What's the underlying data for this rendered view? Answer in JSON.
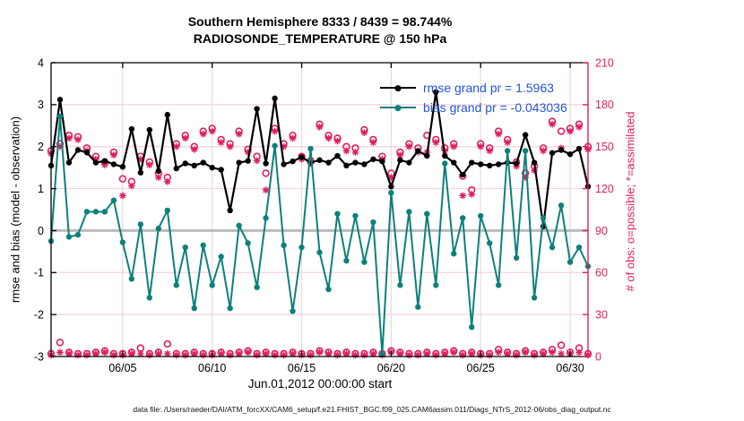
{
  "chart_data": {
    "type": "line",
    "title": "Southern Hemisphere 8333 / 8439 = 98.744%",
    "subtitle": "RADIOSONDE_TEMPERATURE @ 150 hPa",
    "xlabel": "Jun.01,2012 00:00:00 start",
    "ylabel_left": "rmse and bias (model - observation)",
    "ylabel_right": "# of obs: o=possible; *=assimilated",
    "footer": "data file: /Users/raeder/DAI/ATM_forcXX/CAM6_setup/f.e21.FHIST_BGC.f09_025.CAM6assim.011/Diags_NTrS_2012-06/obs_diag_output.nc",
    "legend": [
      {
        "series": "rmse",
        "label": "rmse grand pr = 1.5963",
        "color": "#000000"
      },
      {
        "series": "bias",
        "label": "bias grand pr = -0.043036",
        "color": "#0E807B"
      }
    ],
    "colors": {
      "rmse": "#000000",
      "bias": "#0E807B",
      "obs": "#DE1E60",
      "legend_text": "#2356D6",
      "grid_h": "#F6D2DE",
      "grid_v": "#E6DCDC",
      "zero_line": "#BBBBBB",
      "axis_left": "#000000",
      "axis_right": "#DE1E60"
    },
    "x_axis": {
      "range_days": [
        1,
        31
      ],
      "tick_days": [
        5,
        10,
        15,
        20,
        25,
        30
      ],
      "tick_labels": [
        "06/05",
        "06/10",
        "06/15",
        "06/20",
        "06/25",
        "06/30"
      ]
    },
    "y_left": {
      "range": [
        -3,
        4
      ],
      "ticks": [
        -3,
        -2,
        -1,
        0,
        1,
        2,
        3,
        4
      ]
    },
    "y_right": {
      "range": [
        0,
        210
      ],
      "ticks": [
        0,
        30,
        60,
        90,
        120,
        150,
        180,
        210
      ]
    },
    "x_days": [
      1,
      1.5,
      2,
      2.5,
      3,
      3.5,
      4,
      4.5,
      5,
      5.5,
      6,
      6.5,
      7,
      7.5,
      8,
      8.5,
      9,
      9.5,
      10,
      10.5,
      11,
      11.5,
      12,
      12.5,
      13,
      13.5,
      14,
      14.5,
      15,
      15.5,
      16,
      16.5,
      17,
      17.5,
      18,
      18.5,
      19,
      19.5,
      20,
      20.5,
      21,
      21.5,
      22,
      22.5,
      23,
      23.5,
      24,
      24.5,
      25,
      25.5,
      26,
      26.5,
      27,
      27.5,
      28,
      28.5,
      29,
      29.5,
      30,
      30.5,
      31
    ],
    "series": {
      "rmse": [
        1.55,
        3.12,
        1.62,
        1.92,
        1.86,
        1.62,
        1.66,
        1.58,
        1.52,
        2.42,
        1.38,
        2.4,
        1.42,
        2.76,
        1.48,
        1.6,
        1.55,
        1.62,
        1.5,
        1.45,
        0.48,
        1.62,
        1.66,
        2.9,
        1.6,
        3.15,
        1.58,
        1.65,
        1.75,
        1.62,
        1.68,
        1.62,
        1.78,
        1.55,
        1.62,
        1.58,
        1.7,
        1.65,
        1.05,
        1.68,
        1.62,
        1.9,
        1.78,
        3.3,
        1.78,
        1.62,
        1.33,
        1.62,
        1.58,
        1.55,
        1.58,
        1.62,
        1.6,
        2.28,
        1.62,
        0.1,
        1.85,
        1.92,
        1.82,
        1.95,
        1.05
      ],
      "bias": [
        -0.25,
        2.72,
        -0.15,
        -0.1,
        0.45,
        0.45,
        0.45,
        0.72,
        -0.28,
        -1.15,
        0.15,
        -1.6,
        0.05,
        0.48,
        -1.3,
        -0.4,
        -1.85,
        -0.35,
        -1.3,
        -0.62,
        -1.85,
        0.12,
        -0.3,
        -1.35,
        0.3,
        2.02,
        -0.35,
        -1.92,
        -0.4,
        1.95,
        -0.52,
        -1.4,
        0.4,
        -0.72,
        0.35,
        -0.75,
        0.2,
        -2.95,
        0.9,
        -1.3,
        0.45,
        -1.82,
        0.4,
        -1.3,
        1.6,
        -0.55,
        0.3,
        -2.3,
        0.35,
        -0.3,
        -1.3,
        1.9,
        -0.65,
        1.9,
        -1.6,
        0.3,
        -0.4,
        0.6,
        -0.75,
        -0.4,
        -0.85
      ],
      "n_possible": [
        147,
        152,
        158,
        157,
        149,
        143,
        139,
        146,
        127,
        125,
        143,
        139,
        131,
        128,
        152,
        158,
        150,
        161,
        163,
        155,
        152,
        161,
        148,
        143,
        131,
        163,
        152,
        158,
        143,
        140,
        166,
        158,
        156,
        150,
        149,
        162,
        155,
        143,
        131,
        146,
        152,
        149,
        158,
        155,
        149,
        152,
        129,
        119,
        152,
        149,
        161,
        155,
        139,
        131,
        136,
        149,
        168,
        161,
        163,
        166,
        150
      ],
      "n_assimilated": [
        145,
        150,
        156,
        155,
        147,
        141,
        137,
        144,
        115,
        122,
        141,
        137,
        128,
        125,
        150,
        156,
        148,
        159,
        161,
        153,
        150,
        159,
        146,
        140,
        119,
        161,
        150,
        156,
        141,
        138,
        164,
        156,
        154,
        147,
        146,
        160,
        153,
        141,
        128,
        144,
        150,
        146,
        146,
        153,
        147,
        150,
        115,
        116,
        150,
        147,
        159,
        153,
        136,
        128,
        133,
        147,
        166,
        149,
        161,
        164,
        148
      ],
      "n_bottom_possible": [
        2,
        10,
        3,
        2,
        2,
        3,
        4,
        2,
        2,
        3,
        6,
        2,
        3,
        9,
        2,
        2,
        3,
        2,
        2,
        3,
        2,
        3,
        4,
        2,
        3,
        2,
        2,
        3,
        2,
        2,
        4,
        3,
        2,
        3,
        2,
        2,
        3,
        2,
        4,
        3,
        2,
        2,
        3,
        2,
        3,
        4,
        2,
        3,
        2,
        2,
        5,
        3,
        2,
        4,
        2,
        3,
        5,
        8,
        3,
        6,
        2
      ],
      "n_bottom_assimilated": [
        1,
        3,
        2,
        1,
        1,
        2,
        3,
        1,
        1,
        2,
        2,
        1,
        2,
        2,
        1,
        1,
        2,
        1,
        1,
        2,
        1,
        2,
        3,
        1,
        2,
        1,
        1,
        2,
        1,
        1,
        3,
        2,
        1,
        2,
        1,
        1,
        2,
        1,
        3,
        2,
        1,
        1,
        2,
        1,
        2,
        3,
        1,
        2,
        1,
        1,
        3,
        2,
        1,
        3,
        1,
        2,
        3,
        2,
        2,
        3,
        1
      ]
    }
  }
}
